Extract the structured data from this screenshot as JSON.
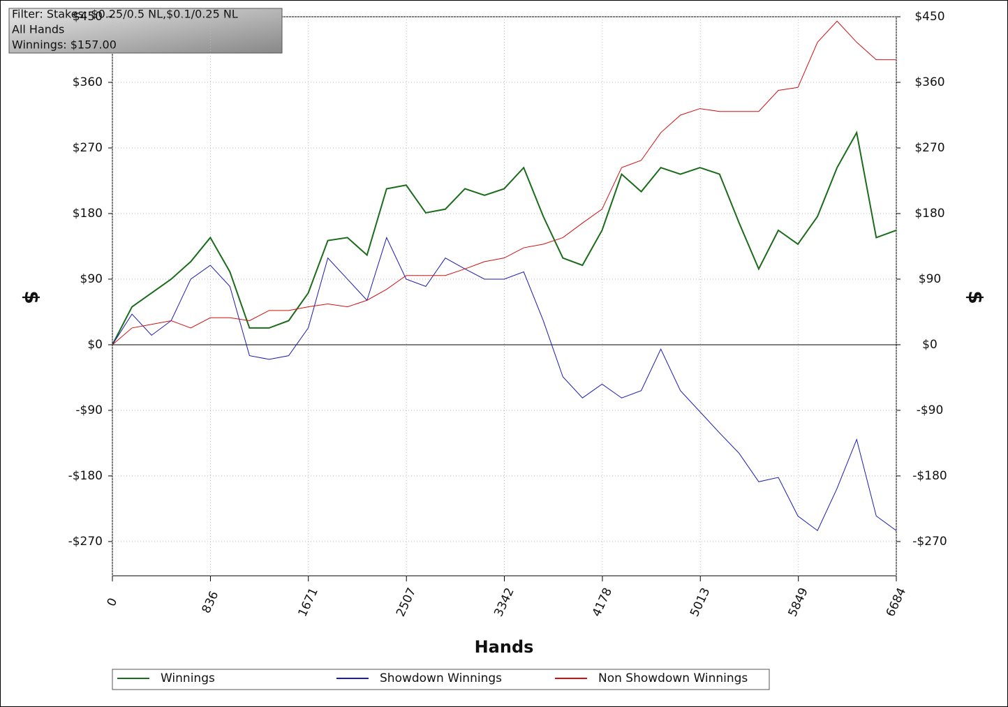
{
  "chart_data": {
    "type": "line",
    "annotations": [
      "Filter: Stakes: $0.25/0.5 NL,$0.1/0.25 NL",
      "All Hands",
      "Winnings: $157.00"
    ],
    "x_label": "Hands",
    "y_label": "$",
    "x": [
      0,
      167,
      334,
      501,
      668,
      835,
      1002,
      1169,
      1336,
      1503,
      1670,
      1837,
      2004,
      2171,
      2338,
      2505,
      2672,
      2839,
      3006,
      3173,
      3340,
      3507,
      3674,
      3841,
      4008,
      4175,
      4342,
      4509,
      4676,
      4843,
      5010,
      5177,
      5344,
      5511,
      5678,
      5845,
      6012,
      6179,
      6346,
      6513,
      6684
    ],
    "xlim": [
      0,
      6684
    ],
    "xticks": [
      0,
      836,
      1671,
      2507,
      3342,
      4178,
      5013,
      5849,
      6684
    ],
    "ylim": [
      -317,
      450
    ],
    "yticks": [
      {
        "value": -270,
        "label": "-$270"
      },
      {
        "value": -180,
        "label": "-$180"
      },
      {
        "value": -90,
        "label": "-$90"
      },
      {
        "value": 0,
        "label": "$0"
      },
      {
        "value": 90,
        "label": "$90"
      },
      {
        "value": 180,
        "label": "$180"
      },
      {
        "value": 270,
        "label": "$270"
      },
      {
        "value": 360,
        "label": "$360"
      },
      {
        "value": 450,
        "label": "$450"
      }
    ],
    "grid": true,
    "series": [
      {
        "name": "Winnings",
        "color": "#1a6b1a",
        "values": [
          0,
          52,
          71,
          90,
          114,
          147,
          100,
          23,
          23,
          33,
          71,
          143,
          147,
          123,
          214,
          219,
          181,
          186,
          214,
          205,
          214,
          243,
          176,
          119,
          109,
          157,
          234,
          210,
          243,
          234,
          243,
          234,
          167,
          104,
          157,
          138,
          176,
          243,
          291,
          147,
          157
        ]
      },
      {
        "name": "Showdown Winnings",
        "color": "#1a1ab4",
        "values": [
          0,
          42,
          13,
          33,
          90,
          109,
          80,
          -15,
          -20,
          -15,
          23,
          119,
          90,
          61,
          147,
          90,
          80,
          119,
          104,
          90,
          90,
          100,
          33,
          -44,
          -73,
          -54,
          -73,
          -63,
          -6,
          -63,
          -92,
          -121,
          -149,
          -188,
          -182,
          -235,
          -255,
          -197,
          -130,
          -235,
          -255
        ]
      },
      {
        "name": "Non Showdown Winnings",
        "color": "#d01010",
        "values": [
          0,
          23,
          28,
          33,
          23,
          37,
          37,
          33,
          47,
          47,
          52,
          56,
          52,
          61,
          76,
          95,
          95,
          95,
          104,
          114,
          119,
          133,
          138,
          147,
          167,
          186,
          243,
          253,
          291,
          315,
          324,
          320,
          320,
          320,
          349,
          353,
          415,
          444,
          415,
          391,
          391
        ]
      }
    ]
  }
}
